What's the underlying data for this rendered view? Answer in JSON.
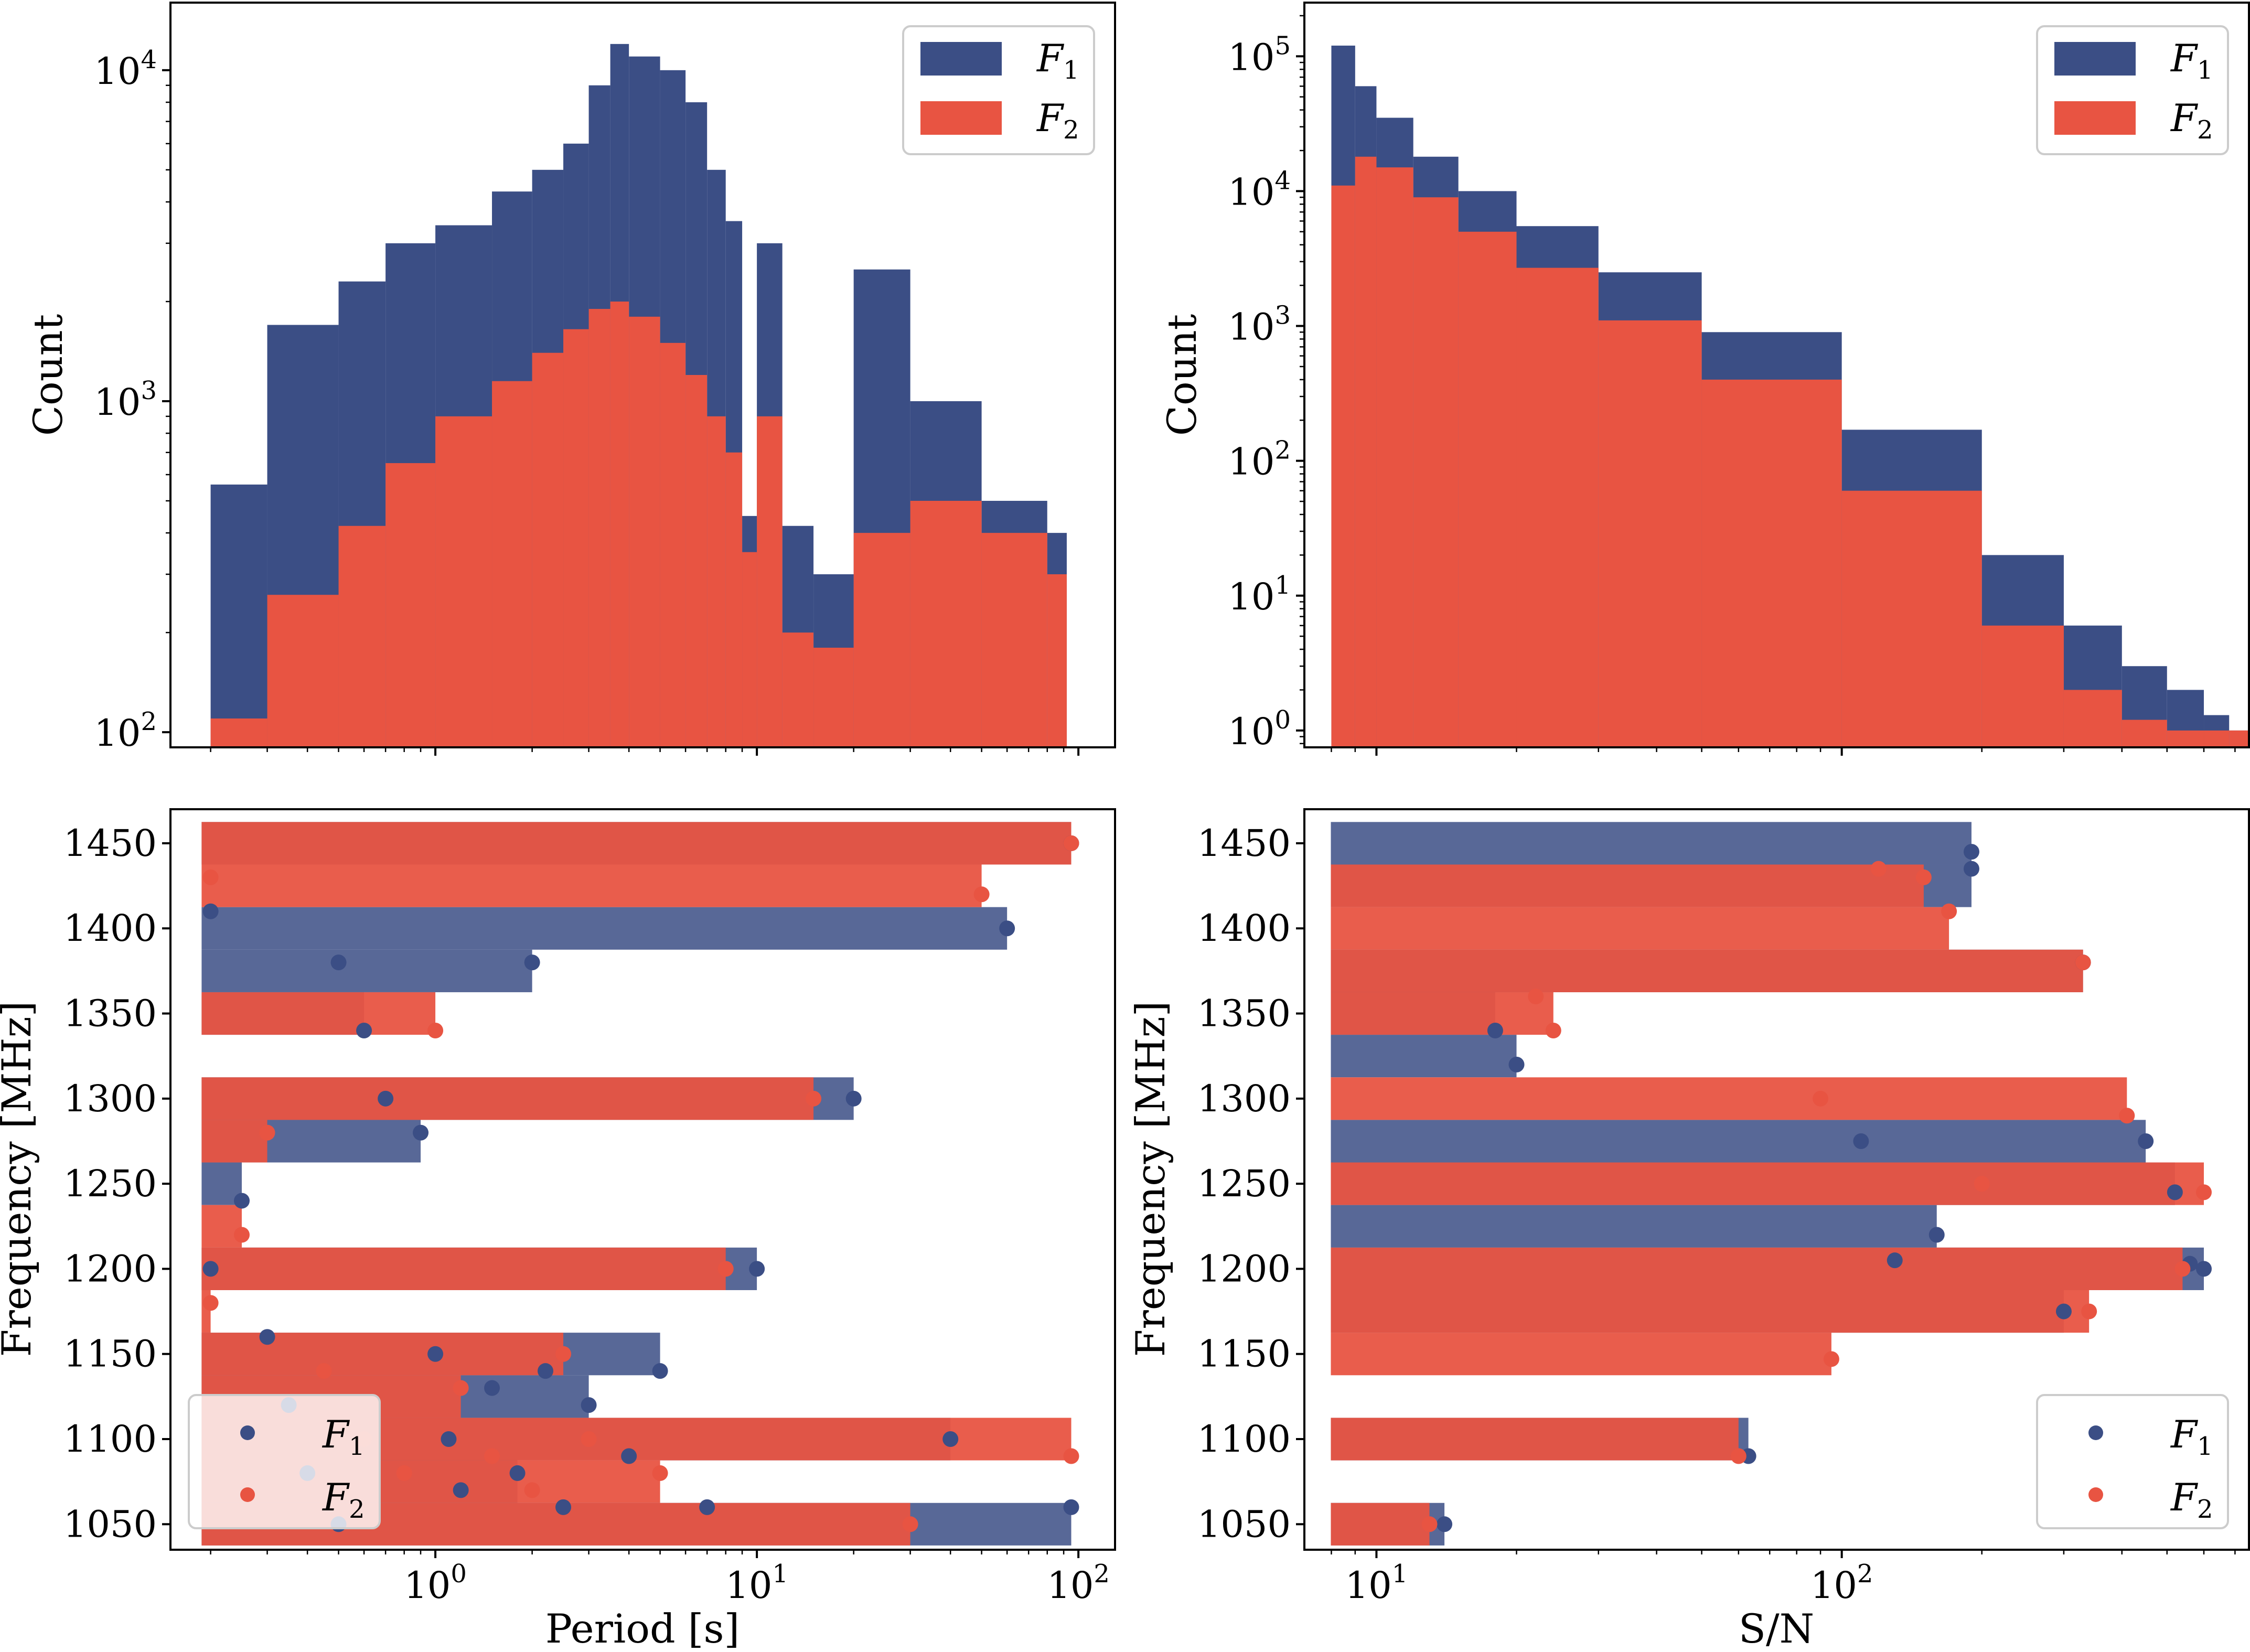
{
  "colors": {
    "f1": "#3b4e85",
    "f2": "#e85442",
    "axis": "#000000",
    "background": "#ffffff"
  },
  "legend_labels": {
    "f1": "F",
    "f1_sub": "1",
    "f2": "F",
    "f2_sub": "2"
  },
  "chart_data": [
    {
      "id": "period_hist",
      "type": "bar",
      "title": "",
      "xlabel": "",
      "ylabel": "Count",
      "xscale": "log",
      "yscale": "log",
      "xlim": [
        0.15,
        130
      ],
      "ylim": [
        90,
        16000
      ],
      "x_ticks": [
        {
          "value": 1,
          "base": "10",
          "exp": "0"
        },
        {
          "value": 10,
          "base": "10",
          "exp": "1"
        },
        {
          "value": 100,
          "base": "10",
          "exp": "2"
        }
      ],
      "y_ticks": [
        {
          "value": 100,
          "base": "10",
          "exp": "2"
        },
        {
          "value": 1000,
          "base": "10",
          "exp": "3"
        },
        {
          "value": 10000,
          "base": "10",
          "exp": "4"
        }
      ],
      "x_ticklabels_visible": false,
      "legend": {
        "position": "top-right",
        "entries": [
          "F1",
          "F2"
        ],
        "marker": "patch"
      },
      "series": [
        {
          "name": "F1",
          "x": [
            0.2,
            0.3,
            0.5,
            0.7,
            1.0,
            1.5,
            2.0,
            2.5,
            3.0,
            3.5,
            4.0,
            5.0,
            6.0,
            7.0,
            8.0,
            9.0,
            10,
            12,
            15,
            20,
            30,
            50,
            80
          ],
          "values": [
            560,
            1700,
            2300,
            3000,
            3400,
            4300,
            5000,
            6000,
            9000,
            12000,
            11000,
            10000,
            8000,
            5000,
            3500,
            450,
            3000,
            420,
            300,
            2500,
            1000,
            500,
            400
          ]
        },
        {
          "name": "F2",
          "x": [
            0.2,
            0.3,
            0.5,
            0.7,
            1.0,
            1.5,
            2.0,
            2.5,
            3.0,
            3.5,
            4.0,
            5.0,
            6.0,
            7.0,
            8.0,
            9.0,
            10,
            12,
            15,
            20,
            30,
            50,
            80
          ],
          "values": [
            110,
            260,
            420,
            650,
            900,
            1150,
            1400,
            1650,
            1900,
            2000,
            1800,
            1500,
            1200,
            900,
            700,
            350,
            900,
            200,
            180,
            400,
            500,
            400,
            300
          ]
        }
      ]
    },
    {
      "id": "snr_hist",
      "type": "bar",
      "title": "",
      "xlabel": "",
      "ylabel": "Count",
      "xscale": "log",
      "yscale": "log",
      "xlim": [
        7,
        750
      ],
      "ylim": [
        0.75,
        250000
      ],
      "x_ticks": [
        {
          "value": 10,
          "base": "10",
          "exp": "1"
        },
        {
          "value": 100,
          "base": "10",
          "exp": "2"
        }
      ],
      "y_ticks": [
        {
          "value": 1,
          "base": "10",
          "exp": "0"
        },
        {
          "value": 10,
          "base": "10",
          "exp": "1"
        },
        {
          "value": 100,
          "base": "10",
          "exp": "2"
        },
        {
          "value": 1000,
          "base": "10",
          "exp": "3"
        },
        {
          "value": 10000,
          "base": "10",
          "exp": "4"
        },
        {
          "value": 100000,
          "base": "10",
          "exp": "5"
        }
      ],
      "x_ticklabels_visible": false,
      "legend": {
        "position": "top-right",
        "entries": [
          "F1",
          "F2"
        ],
        "marker": "patch"
      },
      "series": [
        {
          "name": "F1",
          "x": [
            8,
            9,
            10,
            12,
            15,
            20,
            30,
            50,
            100,
            200,
            300,
            400,
            500,
            600,
            680
          ],
          "values": [
            120000,
            60000,
            35000,
            18000,
            10000,
            5500,
            2500,
            900,
            170,
            20,
            6,
            3,
            2,
            1.3,
            1
          ]
        },
        {
          "name": "F2",
          "x": [
            8,
            9,
            10,
            12,
            15,
            20,
            30,
            50,
            100,
            200,
            300,
            400,
            500,
            600,
            680
          ],
          "values": [
            11000,
            18000,
            15000,
            9000,
            5000,
            2700,
            1100,
            400,
            60,
            6,
            2,
            1.2,
            1,
            1,
            1
          ]
        }
      ]
    },
    {
      "id": "period_freq_scatter",
      "type": "scatter",
      "title": "",
      "xlabel": "Period [s]",
      "ylabel": "Frequency [MHz]",
      "xscale": "log",
      "yscale": "linear",
      "xlim": [
        0.15,
        130
      ],
      "ylim": [
        1035,
        1470
      ],
      "x_ticks": [
        {
          "value": 1,
          "base": "10",
          "exp": "0"
        },
        {
          "value": 10,
          "base": "10",
          "exp": "1"
        },
        {
          "value": 100,
          "base": "10",
          "exp": "2"
        }
      ],
      "y_ticks": [
        1050,
        1100,
        1150,
        1200,
        1250,
        1300,
        1350,
        1400,
        1450
      ],
      "legend": {
        "position": "bottom-left",
        "entries": [
          "F1",
          "F2"
        ],
        "marker": "dot"
      },
      "series": [
        {
          "name": "F1",
          "points": [
            [
              0.2,
              1410
            ],
            [
              0.2,
              1200
            ],
            [
              0.25,
              1240
            ],
            [
              0.3,
              1160
            ],
            [
              0.35,
              1120
            ],
            [
              0.4,
              1080
            ],
            [
              0.5,
              1050
            ],
            [
              0.5,
              1380
            ],
            [
              0.6,
              1340
            ],
            [
              0.7,
              1300
            ],
            [
              0.9,
              1280
            ],
            [
              1.0,
              1150
            ],
            [
              1.1,
              1100
            ],
            [
              1.2,
              1070
            ],
            [
              1.5,
              1130
            ],
            [
              1.8,
              1080
            ],
            [
              2.0,
              1380
            ],
            [
              2.2,
              1140
            ],
            [
              2.5,
              1060
            ],
            [
              3.0,
              1120
            ],
            [
              4.0,
              1090
            ],
            [
              5.0,
              1140
            ],
            [
              7.0,
              1060
            ],
            [
              10,
              1200
            ],
            [
              20,
              1300
            ],
            [
              40,
              1100
            ],
            [
              60,
              1400
            ],
            [
              95,
              1060
            ],
            [
              95,
              1450
            ]
          ]
        },
        {
          "name": "F2",
          "points": [
            [
              0.2,
              1430
            ],
            [
              0.2,
              1180
            ],
            [
              0.25,
              1220
            ],
            [
              0.3,
              1280
            ],
            [
              0.45,
              1140
            ],
            [
              0.6,
              1100
            ],
            [
              0.8,
              1080
            ],
            [
              1.0,
              1340
            ],
            [
              1.2,
              1130
            ],
            [
              1.5,
              1090
            ],
            [
              2.0,
              1070
            ],
            [
              2.5,
              1150
            ],
            [
              3.0,
              1100
            ],
            [
              5.0,
              1080
            ],
            [
              8.0,
              1200
            ],
            [
              15,
              1300
            ],
            [
              30,
              1050
            ],
            [
              50,
              1420
            ],
            [
              95,
              1090
            ],
            [
              95,
              1450
            ]
          ]
        }
      ]
    },
    {
      "id": "snr_freq_scatter",
      "type": "scatter",
      "title": "",
      "xlabel": "S/N",
      "ylabel": "Frequency [MHz]",
      "xscale": "log",
      "yscale": "linear",
      "xlim": [
        7,
        750
      ],
      "ylim": [
        1035,
        1470
      ],
      "x_ticks": [
        {
          "value": 10,
          "base": "10",
          "exp": "1"
        },
        {
          "value": 100,
          "base": "10",
          "exp": "2"
        }
      ],
      "y_ticks": [
        1050,
        1100,
        1150,
        1200,
        1250,
        1300,
        1350,
        1400,
        1450
      ],
      "legend": {
        "position": "bottom-right",
        "entries": [
          "F1",
          "F2"
        ],
        "marker": "dot"
      },
      "series": [
        {
          "name": "F1",
          "points": [
            [
              560,
              1203
            ],
            [
              600,
              1200
            ],
            [
              520,
              1245
            ],
            [
              450,
              1275
            ],
            [
              330,
              1380
            ],
            [
              190,
              1435
            ],
            [
              190,
              1445
            ],
            [
              300,
              1175
            ],
            [
              130,
              1205
            ],
            [
              160,
              1220
            ],
            [
              110,
              1275
            ],
            [
              63,
              1090
            ],
            [
              14,
              1050
            ],
            [
              20,
              1320
            ],
            [
              18,
              1340
            ]
          ]
        },
        {
          "name": "F2",
          "points": [
            [
              600,
              1245
            ],
            [
              540,
              1200
            ],
            [
              410,
              1290
            ],
            [
              340,
              1175
            ],
            [
              330,
              1380
            ],
            [
              170,
              1410
            ],
            [
              150,
              1430
            ],
            [
              120,
              1435
            ],
            [
              95,
              1147
            ],
            [
              60,
              1090
            ],
            [
              24,
              1340
            ],
            [
              22,
              1360
            ],
            [
              13,
              1050
            ],
            [
              200,
              1250
            ],
            [
              90,
              1300
            ]
          ]
        }
      ]
    }
  ]
}
